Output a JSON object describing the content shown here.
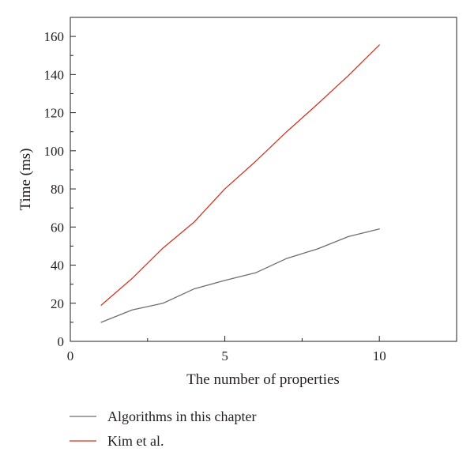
{
  "chart_data": {
    "type": "line",
    "title": "",
    "xlabel": "The number of properties",
    "ylabel": "Time (ms)",
    "xlim": [
      0,
      12.5
    ],
    "ylim": [
      0,
      170
    ],
    "x_ticks": [
      0,
      5,
      10
    ],
    "y_ticks": [
      0,
      20,
      40,
      60,
      80,
      100,
      120,
      140,
      160
    ],
    "x_minor_ticks": [
      2.5,
      7.5
    ],
    "y_minor_ticks": [
      10,
      30,
      50,
      70,
      90,
      110,
      130,
      150
    ],
    "grid": false,
    "legend_position": "bottom",
    "x": [
      1,
      2,
      3,
      4,
      5,
      6,
      7,
      8,
      9,
      10
    ],
    "series": [
      {
        "name": "Algorithms in this chapter",
        "color": "#6d6e71",
        "values": [
          10,
          16.5,
          20,
          27.5,
          32,
          36,
          43.5,
          48.5,
          55,
          59
        ]
      },
      {
        "name": "Kim et al.",
        "color": "#d1331f",
        "values": [
          19,
          33,
          49,
          62.5,
          80,
          94.5,
          110,
          124.5,
          139.5,
          155.5
        ]
      }
    ]
  }
}
